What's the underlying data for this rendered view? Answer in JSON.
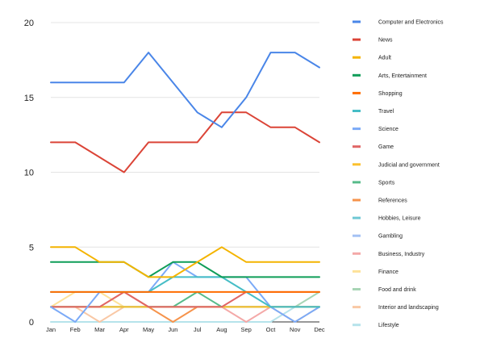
{
  "chart_data": {
    "type": "line",
    "title": "",
    "xlabel": "",
    "ylabel": "",
    "ylim": [
      0,
      20
    ],
    "yticks": [
      "0",
      "5",
      "10",
      "15",
      "20"
    ],
    "grid": "horizontal",
    "legend_position": "right",
    "categories": [
      "Jan",
      "Feb",
      "Mar",
      "Apr",
      "May",
      "Jun",
      "Jul",
      "Aug",
      "Sep",
      "Oct",
      "Nov",
      "Dec"
    ],
    "series": [
      {
        "name": "Computer and Electronics",
        "color": "#4a86e8",
        "values": [
          16,
          16,
          16,
          16,
          18,
          16,
          14,
          13,
          15,
          18,
          18,
          17
        ]
      },
      {
        "name": "News",
        "color": "#db4437",
        "values": [
          12,
          12,
          11,
          10,
          12,
          12,
          12,
          14,
          14,
          13,
          13,
          12
        ]
      },
      {
        "name": "Adult",
        "color": "#f4b400",
        "values": [
          5,
          5,
          4,
          4,
          3,
          3,
          4,
          5,
          4,
          4,
          4,
          4
        ]
      },
      {
        "name": "Arts, Entertainment",
        "color": "#0f9d58",
        "values": [
          4,
          4,
          4,
          4,
          3,
          4,
          4,
          3,
          3,
          3,
          3,
          3
        ]
      },
      {
        "name": "Shopping",
        "color": "#ff6d00",
        "values": [
          2,
          2,
          2,
          2,
          2,
          2,
          2,
          2,
          2,
          2,
          2,
          2
        ]
      },
      {
        "name": "Travel",
        "color": "#46bdc6",
        "values": [
          2,
          2,
          2,
          2,
          2,
          3,
          3,
          3,
          2,
          1,
          1,
          1
        ]
      },
      {
        "name": "Science",
        "color": "#7baaf7",
        "values": [
          1,
          0,
          2,
          2,
          2,
          4,
          3,
          3,
          3,
          1,
          0,
          1
        ]
      },
      {
        "name": "Game",
        "color": "#e06666",
        "values": [
          1,
          1,
          1,
          2,
          1,
          1,
          1,
          1,
          2,
          2,
          2,
          2
        ]
      },
      {
        "name": "Judicial and government",
        "color": "#fbc02d",
        "values": [
          1,
          1,
          1,
          1,
          1,
          1,
          1,
          1,
          1,
          1,
          1,
          1
        ]
      },
      {
        "name": "Sports",
        "color": "#57bb8a",
        "values": [
          1,
          1,
          1,
          1,
          1,
          1,
          2,
          1,
          1,
          1,
          1,
          1
        ]
      },
      {
        "name": "References",
        "color": "#f6934b",
        "values": [
          1,
          1,
          1,
          2,
          1,
          0,
          1,
          1,
          1,
          1,
          1,
          1
        ]
      },
      {
        "name": "Hobbies, Leisure",
        "color": "#6fc8d4",
        "values": [
          1,
          1,
          1,
          1,
          1,
          1,
          1,
          1,
          1,
          1,
          1,
          1
        ]
      },
      {
        "name": "Gambling",
        "color": "#a4c2f4",
        "values": [
          1,
          1,
          1,
          1,
          1,
          1,
          1,
          1,
          1,
          1,
          1,
          1
        ]
      },
      {
        "name": "Business, Industry",
        "color": "#f4a9a8",
        "values": [
          1,
          1,
          1,
          1,
          1,
          1,
          1,
          1,
          0,
          1,
          1,
          1
        ]
      },
      {
        "name": "Finance",
        "color": "#fde29a",
        "values": [
          1,
          2,
          2,
          1,
          1,
          1,
          1,
          1,
          1,
          1,
          1,
          1
        ]
      },
      {
        "name": "Food and drink",
        "color": "#a8d5b5",
        "values": [
          1,
          1,
          1,
          1,
          1,
          1,
          1,
          1,
          1,
          1,
          1,
          2
        ]
      },
      {
        "name": "Interior and landscaping",
        "color": "#f9c8a5",
        "values": [
          1,
          1,
          0,
          1,
          1,
          1,
          1,
          1,
          1,
          1,
          0,
          1
        ]
      },
      {
        "name": "Lifestyle",
        "color": "#b6e3eb",
        "values": [
          0,
          0,
          0,
          0,
          0,
          0,
          0,
          0,
          0,
          0,
          1,
          1
        ]
      }
    ]
  }
}
